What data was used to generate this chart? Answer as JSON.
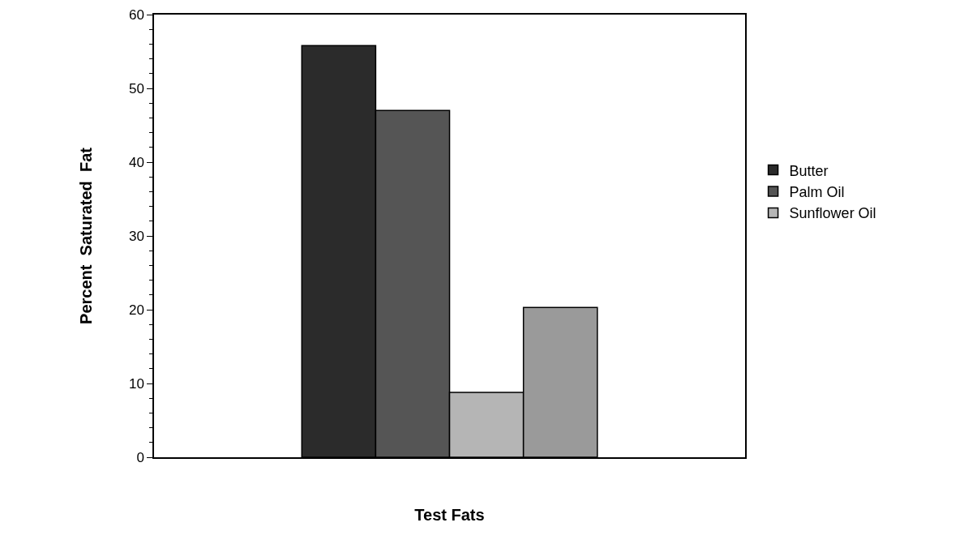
{
  "chart_data": {
    "type": "bar",
    "xlabel": "Test Fats",
    "ylabel": "Percent  Saturated  Fat",
    "categories": [
      null
    ],
    "series": [
      {
        "name": "Butter",
        "color": "#2b2b2b",
        "values": [
          55.8
        ]
      },
      {
        "name": "Palm Oil",
        "color": "#555555",
        "values": [
          47
        ]
      },
      {
        "name": "Sunflower Oil",
        "color": "#b5b5b5",
        "values": [
          8.8
        ]
      },
      {
        "color": "#9a9a9a",
        "values": [
          20.3
        ]
      }
    ],
    "ylim": [
      0,
      60
    ],
    "yticks": [
      0,
      10,
      20,
      30,
      40,
      50,
      60
    ],
    "grid": false,
    "legend": "right"
  }
}
